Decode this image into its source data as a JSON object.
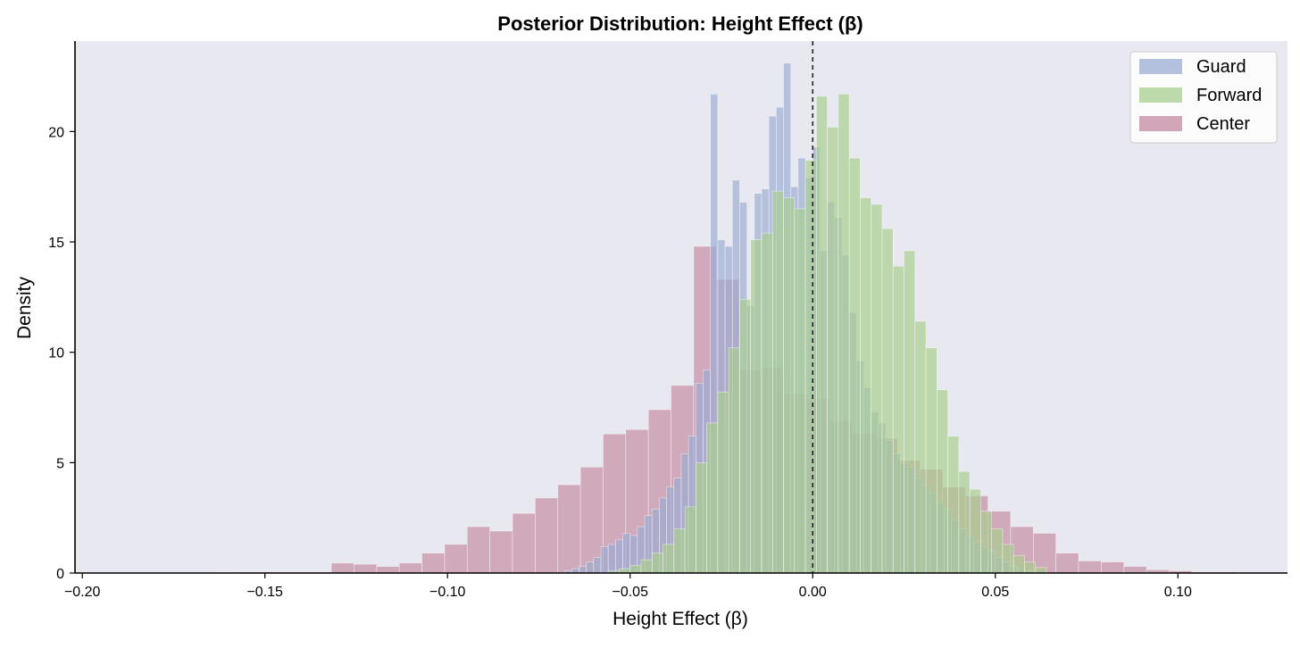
{
  "chart_data": {
    "type": "histogram",
    "title": "Posterior Distribution: Height Effect (β)",
    "xlabel": "Height Effect (β)",
    "ylabel": "Density",
    "xlim": [
      -0.202,
      0.13
    ],
    "ylim": [
      0,
      24.1
    ],
    "x_ticks": [
      -0.2,
      -0.15,
      -0.1,
      -0.05,
      0.0,
      0.05,
      0.1
    ],
    "x_tick_labels": [
      "−0.20",
      "−0.15",
      "−0.10",
      "−0.05",
      "0.00",
      "0.05",
      "0.10"
    ],
    "y_ticks": [
      0,
      5,
      10,
      15,
      20
    ],
    "y_tick_labels": [
      "0",
      "5",
      "10",
      "15",
      "20"
    ],
    "grid": false,
    "legend_position": "top-right",
    "reference_line": {
      "x": 0.0,
      "style": "dashed",
      "color": "#222222"
    },
    "background": "#e8e8f0",
    "series": [
      {
        "name": "Center",
        "color": "#c48aa0",
        "bins": [
          [
            -0.2,
            -0.1938,
            0.02
          ],
          [
            -0.1938,
            -0.1876,
            0.02
          ],
          [
            -0.1876,
            -0.1814,
            0.02
          ],
          [
            -0.1814,
            -0.1752,
            0.02
          ],
          [
            -0.1752,
            -0.169,
            0.02
          ],
          [
            -0.169,
            -0.1628,
            0.02
          ],
          [
            -0.1628,
            -0.1566,
            0.03
          ],
          [
            -0.1566,
            -0.1504,
            0.05
          ],
          [
            -0.1504,
            -0.1442,
            0.05
          ],
          [
            -0.1442,
            -0.138,
            0.05
          ],
          [
            -0.138,
            -0.1318,
            0.05
          ],
          [
            -0.1318,
            -0.1256,
            0.45
          ],
          [
            -0.1256,
            -0.1194,
            0.4
          ],
          [
            -0.1194,
            -0.1132,
            0.3
          ],
          [
            -0.1132,
            -0.107,
            0.45
          ],
          [
            -0.107,
            -0.1008,
            0.9
          ],
          [
            -0.1008,
            -0.0946,
            1.3
          ],
          [
            -0.0946,
            -0.0884,
            2.1
          ],
          [
            -0.0884,
            -0.0822,
            1.9
          ],
          [
            -0.0822,
            -0.076,
            2.7
          ],
          [
            -0.076,
            -0.0698,
            3.4
          ],
          [
            -0.0698,
            -0.0636,
            4.0
          ],
          [
            -0.0636,
            -0.0574,
            4.8
          ],
          [
            -0.0574,
            -0.0512,
            6.3
          ],
          [
            -0.0512,
            -0.045,
            6.5
          ],
          [
            -0.045,
            -0.0388,
            7.4
          ],
          [
            -0.0388,
            -0.0326,
            8.5
          ],
          [
            -0.0326,
            -0.0264,
            14.8
          ],
          [
            -0.0264,
            -0.0202,
            13.3
          ],
          [
            -0.0202,
            -0.014,
            9.2
          ],
          [
            -0.014,
            -0.0078,
            9.3
          ],
          [
            -0.0078,
            -0.0016,
            8.1
          ],
          [
            -0.0016,
            0.0046,
            7.9
          ],
          [
            0.0046,
            0.0108,
            6.9
          ],
          [
            0.0108,
            0.017,
            6.3
          ],
          [
            0.017,
            0.0232,
            6.1
          ],
          [
            0.0232,
            0.0294,
            5.1
          ],
          [
            0.0294,
            0.0356,
            4.7
          ],
          [
            0.0356,
            0.0418,
            3.9
          ],
          [
            0.0418,
            0.048,
            3.5
          ],
          [
            0.048,
            0.0542,
            2.8
          ],
          [
            0.0542,
            0.0604,
            2.1
          ],
          [
            0.0604,
            0.0666,
            1.8
          ],
          [
            0.0666,
            0.0728,
            0.9
          ],
          [
            0.0728,
            0.079,
            0.55
          ],
          [
            0.079,
            0.0852,
            0.5
          ],
          [
            0.0852,
            0.0914,
            0.3
          ],
          [
            0.0914,
            0.0976,
            0.15
          ],
          [
            0.0976,
            0.1038,
            0.1
          ],
          [
            0.1038,
            0.11,
            0.05
          ],
          [
            0.11,
            0.1162,
            0.05
          ]
        ]
      },
      {
        "name": "Guard",
        "color": "#9cadd3",
        "bins": [
          [
            -0.068,
            -0.066,
            0.1
          ],
          [
            -0.066,
            -0.064,
            0.2
          ],
          [
            -0.064,
            -0.062,
            0.3
          ],
          [
            -0.062,
            -0.06,
            0.5
          ],
          [
            -0.06,
            -0.058,
            0.7
          ],
          [
            -0.058,
            -0.056,
            1.2
          ],
          [
            -0.056,
            -0.054,
            1.3
          ],
          [
            -0.054,
            -0.052,
            1.5
          ],
          [
            -0.052,
            -0.05,
            1.8
          ],
          [
            -0.05,
            -0.048,
            1.7
          ],
          [
            -0.048,
            -0.046,
            2.1
          ],
          [
            -0.046,
            -0.044,
            2.6
          ],
          [
            -0.044,
            -0.042,
            2.9
          ],
          [
            -0.042,
            -0.04,
            3.4
          ],
          [
            -0.04,
            -0.038,
            3.9
          ],
          [
            -0.038,
            -0.036,
            4.3
          ],
          [
            -0.036,
            -0.034,
            5.4
          ],
          [
            -0.034,
            -0.032,
            6.2
          ],
          [
            -0.032,
            -0.03,
            8.6
          ],
          [
            -0.03,
            -0.028,
            9.2
          ],
          [
            -0.028,
            -0.026,
            21.7
          ],
          [
            -0.026,
            -0.024,
            15.1
          ],
          [
            -0.024,
            -0.022,
            14.8
          ],
          [
            -0.022,
            -0.02,
            17.8
          ],
          [
            -0.02,
            -0.018,
            16.8
          ],
          [
            -0.018,
            -0.016,
            12.1
          ],
          [
            -0.016,
            -0.014,
            17.2
          ],
          [
            -0.014,
            -0.012,
            17.4
          ],
          [
            -0.012,
            -0.01,
            20.7
          ],
          [
            -0.01,
            -0.008,
            21.1
          ],
          [
            -0.008,
            -0.006,
            23.1
          ],
          [
            -0.006,
            -0.004,
            17.5
          ],
          [
            -0.004,
            -0.002,
            18.8
          ],
          [
            -0.002,
            0.0,
            17.9
          ],
          [
            0.0,
            0.002,
            19.3
          ],
          [
            0.002,
            0.004,
            14.6
          ],
          [
            0.004,
            0.006,
            16.8
          ],
          [
            0.006,
            0.008,
            16.1
          ],
          [
            0.008,
            0.01,
            14.4
          ],
          [
            0.01,
            0.012,
            11.8
          ],
          [
            0.012,
            0.014,
            9.6
          ],
          [
            0.014,
            0.016,
            8.4
          ],
          [
            0.016,
            0.018,
            7.3
          ],
          [
            0.018,
            0.02,
            6.8
          ],
          [
            0.02,
            0.022,
            6.0
          ],
          [
            0.022,
            0.024,
            5.4
          ],
          [
            0.024,
            0.026,
            5.0
          ],
          [
            0.026,
            0.028,
            4.8
          ],
          [
            0.028,
            0.03,
            4.3
          ],
          [
            0.03,
            0.032,
            4.0
          ],
          [
            0.032,
            0.034,
            3.6
          ],
          [
            0.034,
            0.036,
            3.2
          ],
          [
            0.036,
            0.038,
            2.9
          ],
          [
            0.038,
            0.04,
            2.4
          ],
          [
            0.04,
            0.042,
            2.0
          ],
          [
            0.042,
            0.044,
            1.7
          ],
          [
            0.044,
            0.046,
            1.4
          ],
          [
            0.046,
            0.048,
            1.2
          ],
          [
            0.048,
            0.05,
            1.0
          ],
          [
            0.05,
            0.052,
            0.7
          ],
          [
            0.052,
            0.054,
            0.5
          ],
          [
            0.054,
            0.056,
            0.3
          ],
          [
            0.056,
            0.058,
            0.2
          ],
          [
            0.058,
            0.06,
            0.1
          ]
        ]
      },
      {
        "name": "Forward",
        "color": "#a8cf8e",
        "bins": [
          [
            -0.056,
            -0.053,
            0.1
          ],
          [
            -0.053,
            -0.05,
            0.2
          ],
          [
            -0.05,
            -0.047,
            0.35
          ],
          [
            -0.047,
            -0.044,
            0.6
          ],
          [
            -0.044,
            -0.041,
            0.9
          ],
          [
            -0.041,
            -0.038,
            1.3
          ],
          [
            -0.038,
            -0.035,
            2.0
          ],
          [
            -0.035,
            -0.032,
            3.0
          ],
          [
            -0.032,
            -0.029,
            5.0
          ],
          [
            -0.029,
            -0.026,
            6.8
          ],
          [
            -0.026,
            -0.023,
            8.2
          ],
          [
            -0.023,
            -0.02,
            10.2
          ],
          [
            -0.02,
            -0.017,
            12.4
          ],
          [
            -0.017,
            -0.014,
            15.1
          ],
          [
            -0.014,
            -0.011,
            15.4
          ],
          [
            -0.011,
            -0.008,
            17.3
          ],
          [
            -0.008,
            -0.005,
            17.0
          ],
          [
            -0.005,
            -0.002,
            16.5
          ],
          [
            -0.002,
            0.001,
            18.7
          ],
          [
            0.001,
            0.004,
            21.6
          ],
          [
            0.004,
            0.007,
            20.2
          ],
          [
            0.007,
            0.01,
            21.7
          ],
          [
            0.01,
            0.013,
            18.8
          ],
          [
            0.013,
            0.016,
            17.0
          ],
          [
            0.016,
            0.019,
            16.7
          ],
          [
            0.019,
            0.022,
            15.6
          ],
          [
            0.022,
            0.025,
            13.9
          ],
          [
            0.025,
            0.028,
            14.6
          ],
          [
            0.028,
            0.031,
            11.4
          ],
          [
            0.031,
            0.034,
            10.2
          ],
          [
            0.034,
            0.037,
            8.3
          ],
          [
            0.037,
            0.04,
            6.2
          ],
          [
            0.04,
            0.043,
            4.6
          ],
          [
            0.043,
            0.046,
            3.8
          ],
          [
            0.046,
            0.049,
            2.8
          ],
          [
            0.049,
            0.052,
            2.0
          ],
          [
            0.052,
            0.055,
            1.3
          ],
          [
            0.055,
            0.058,
            0.8
          ],
          [
            0.058,
            0.061,
            0.5
          ],
          [
            0.061,
            0.064,
            0.25
          ]
        ]
      }
    ]
  },
  "legend": {
    "items": [
      {
        "label": "Guard",
        "color": "#9cadd3"
      },
      {
        "label": "Forward",
        "color": "#a8cf8e"
      },
      {
        "label": "Center",
        "color": "#c48aa0"
      }
    ]
  }
}
